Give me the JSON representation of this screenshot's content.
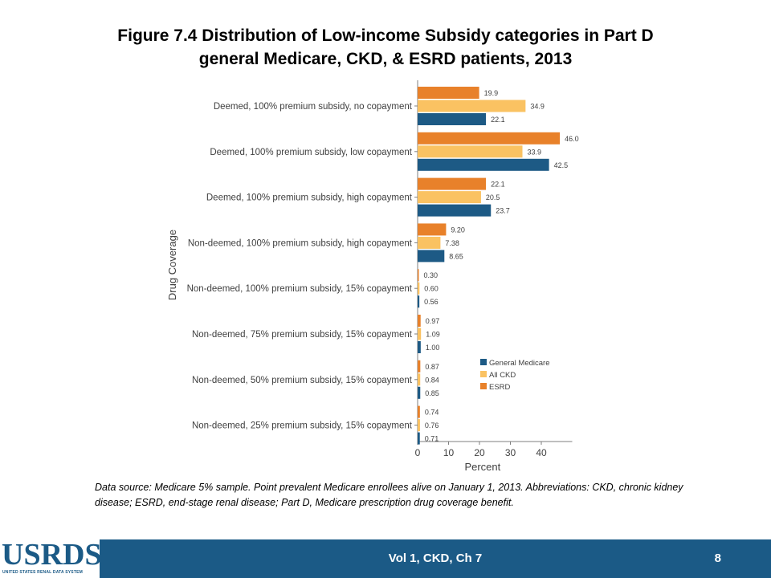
{
  "title": {
    "line1": "Figure 7.4 Distribution of Low-income Subsidy categories in Part D",
    "line2": "general Medicare, CKD, & ESRD patients, 2013"
  },
  "chart_data": {
    "type": "bar",
    "orientation": "horizontal",
    "categories": [
      "Deemed, 100% premium subsidy, no copayment",
      "Deemed, 100% premium subsidy, low copayment",
      "Deemed, 100% premium subsidy, high copayment",
      "Non-deemed, 100% premium subsidy, high copayment",
      "Non-deemed, 100% premium subsidy, 15% copayment",
      "Non-deemed, 75% premium subsidy, 15% copayment",
      "Non-deemed, 50% premium subsidy, 15% copayment",
      "Non-deemed, 25% premium subsidy, 15% copayment"
    ],
    "series": [
      {
        "name": "ESRD",
        "color": "#e8812a",
        "values": [
          19.9,
          46.0,
          22.1,
          9.2,
          0.3,
          0.97,
          0.87,
          0.74
        ],
        "labels": [
          "19.9",
          "46.0",
          "22.1",
          "9.20",
          "0.30",
          "0.97",
          "0.87",
          "0.74"
        ]
      },
      {
        "name": "All CKD",
        "color": "#fac262",
        "values": [
          34.9,
          33.9,
          20.5,
          7.38,
          0.6,
          1.09,
          0.84,
          0.76
        ],
        "labels": [
          "34.9",
          "33.9",
          "20.5",
          "7.38",
          "0.60",
          "1.09",
          "0.84",
          "0.76"
        ]
      },
      {
        "name": "General Medicare",
        "color": "#1d5a85",
        "values": [
          22.1,
          42.5,
          23.7,
          8.65,
          0.56,
          1.0,
          0.85,
          0.71
        ],
        "labels": [
          "22.1",
          "42.5",
          "23.7",
          "8.65",
          "0.56",
          "1.00",
          "0.85",
          "0.71"
        ]
      }
    ],
    "legend": {
      "position": "right",
      "order": [
        "General Medicare",
        "All CKD",
        "ESRD"
      ]
    },
    "xlabel": "Percent",
    "ylabel": "Drug Coverage",
    "xlim": [
      0,
      50
    ],
    "xticks": [
      "0",
      "10",
      "20",
      "30",
      "40"
    ],
    "grid": false
  },
  "source_note": "Data source: Medicare 5% sample. Point prevalent Medicare enrollees alive on January 1, 2013. Abbreviations: CKD, chronic kidney disease; ESRD, end-stage renal disease; Part D, Medicare prescription drug coverage benefit.",
  "footer": {
    "center": "Vol 1, CKD, Ch 7",
    "page_number": "8"
  },
  "logo": {
    "word": "USRDS",
    "subtitle": "UNITED STATES RENAL DATA SYSTEM"
  }
}
